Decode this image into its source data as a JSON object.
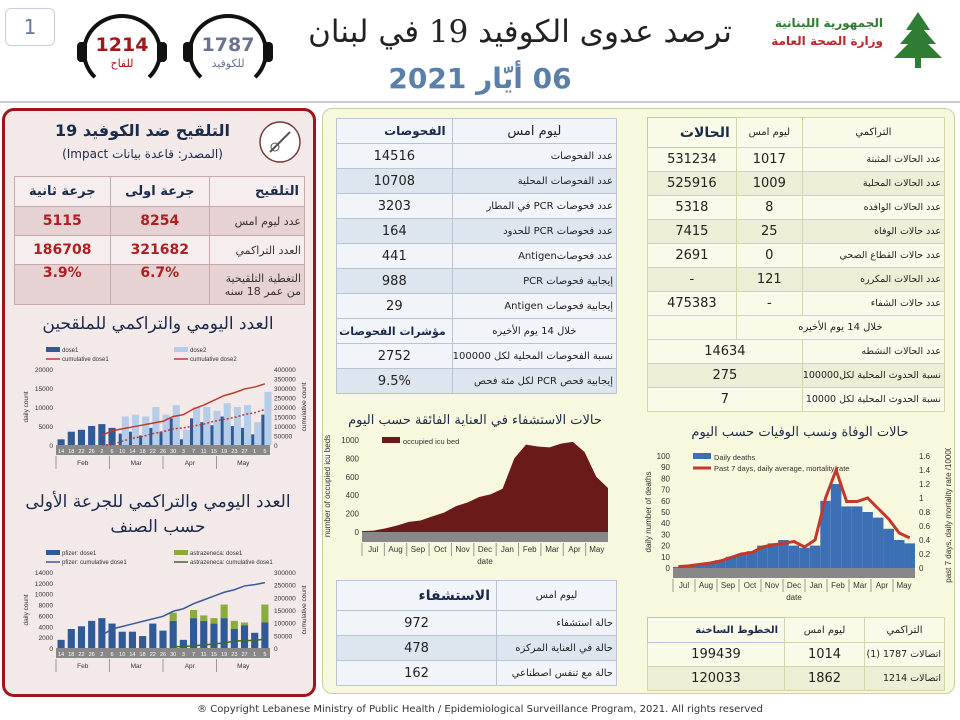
{
  "header": {
    "page_number": "1",
    "title": "ترصد عدوى الكوفيد 19 في لبنان",
    "date": "06 أيّار 2021",
    "logo_line1": "الجمهورية اللبنانية",
    "logo_line2": "وزارة الصحة العامة",
    "hotline_vaccine": {
      "number": "1214",
      "label": "للقاح",
      "color": "#a01818"
    },
    "hotline_covid": {
      "number": "1787",
      "label": "للكوفيد",
      "color": "#6a7290"
    }
  },
  "vaccination": {
    "title": "التلقيح ضد الكوفيد 19",
    "source": "(المصدر: قاعدة بيانات Impact)",
    "headers": [
      "التلقيح",
      "جرعة اولى",
      "جرعة ثانية"
    ],
    "rows": [
      [
        "عدد ليوم امس",
        "8254",
        "5115"
      ],
      [
        "العدد التراكمي",
        "321682",
        "186708"
      ],
      [
        "التغطية التلقيحية من عمر 18 سنه",
        "6.7%",
        "3.9%"
      ]
    ],
    "chart1_title": "العدد اليومي والتراكمي للملقحين",
    "chart2_title": "العدد اليومي والتراكمي للجرعة الأولى حسب الصنف"
  },
  "tests": {
    "headers": [
      "الفحوصات",
      "ليوم امس"
    ],
    "rows": [
      [
        "عدد الفحوصات",
        "14516"
      ],
      [
        "عدد الفحوصات المحلية",
        "10708"
      ],
      [
        "عدد فحوصات PCR في المطار",
        "3203"
      ],
      [
        "عدد فحوصات PCR للحدود",
        "164"
      ],
      [
        "عدد فحوصاتAntigen",
        "441"
      ],
      [
        "إيجابية فحوصات PCR",
        "988"
      ],
      [
        "إيجابية فحوصات Antigen",
        "29"
      ]
    ],
    "indicators_header": [
      "مؤشرات الفحوصات",
      "خلال 14 يوم الأخيره"
    ],
    "indicator_rows": [
      [
        "نسبة الفحوصات المحلية لكل 100000",
        "2752"
      ],
      [
        "إيجابية فحص PCR لكل مئة فحص",
        "9.5%"
      ]
    ]
  },
  "cases": {
    "headers": [
      "الحالات",
      "ليوم امس",
      "التراكمي"
    ],
    "rows": [
      [
        "عدد الحالات المثبتة",
        "1017",
        "531234"
      ],
      [
        "عدد الحالات المحلية",
        "1009",
        "525916"
      ],
      [
        "عدد الحالات الوافده",
        "8",
        "5318"
      ],
      [
        "عدد حالات الوفاة",
        "25",
        "7415"
      ],
      [
        "عدد حالات القطاع الصحي",
        "0",
        "2691"
      ],
      [
        "عدد الحالات المكرره",
        "121",
        "-"
      ],
      [
        "عدد حالات الشفاء",
        "-",
        "475383"
      ]
    ],
    "period_label": "خلال 14 يوم الأخيره",
    "period_rows": [
      [
        "عدد الحالات النشطه",
        "14634"
      ],
      [
        "نسبة الحدوث المحلية لكل100000",
        "275"
      ],
      [
        "نسبة الحدوث المحلية لكل 10000",
        "7"
      ]
    ]
  },
  "hospital": {
    "headers": [
      "الاستشفاء",
      "ليوم امس"
    ],
    "rows": [
      [
        "حالة استشفاء",
        "972"
      ],
      [
        "حالة في العناية المركزه",
        "478"
      ],
      [
        "حالة مع تنفس اصطناعي",
        "162"
      ]
    ]
  },
  "hotlines": {
    "headers": [
      "الخطوط الساخنة",
      "ليوم امس",
      "التراكمي"
    ],
    "rows": [
      [
        "اتصالات 1787 (1)",
        "1014",
        "199439"
      ],
      [
        "اتصالات 1214",
        "1862",
        "120033"
      ]
    ]
  },
  "footer": "® Copyright Lebanese Ministry of Public Health / Epidemiological Surveillance Program, 2021. All rights reserved",
  "chart_data": [
    {
      "id": "icu",
      "type": "area",
      "title": "حالات الاستشفاء في العناية الفائقة حسب اليوم",
      "xlabel": "date",
      "ylabel": "number of occupied icu beds",
      "ylim": [
        0,
        1000
      ],
      "yticks": [
        0,
        200,
        400,
        600,
        800,
        1000
      ],
      "months": [
        "Jul",
        "Aug",
        "Sep",
        "Oct",
        "Nov",
        "Dec",
        "Jan",
        "Feb",
        "Mar",
        "Apr",
        "May"
      ],
      "series": [
        {
          "name": "occupied icu bed",
          "color": "#6b1a1a",
          "values": [
            10,
            15,
            40,
            70,
            110,
            125,
            170,
            210,
            280,
            320,
            380,
            410,
            470,
            800,
            950,
            930,
            920,
            960,
            980,
            870,
            600,
            478
          ]
        }
      ]
    },
    {
      "id": "deaths",
      "type": "bar+line",
      "title": "حالات الوفاة ونسب الوفيات حسب اليوم",
      "xlabel": "date",
      "ylabel": "daily number of deaths",
      "y2label": "past 7 days, daily mortality rate /100000",
      "ylim": [
        0,
        100
      ],
      "y2lim": [
        0,
        1.6
      ],
      "yticks": [
        0,
        10,
        20,
        30,
        40,
        50,
        60,
        70,
        80,
        90,
        100
      ],
      "y2ticks": [
        0,
        0.2,
        0.4,
        0.6,
        0.8,
        1,
        1.2,
        1.4,
        1.6
      ],
      "months": [
        "Jul",
        "Aug",
        "Sep",
        "Oct",
        "Nov",
        "Dec",
        "Jan",
        "Feb",
        "Mar",
        "Apr",
        "May"
      ],
      "series": [
        {
          "name": "Daily deaths",
          "color": "#3d6fb5",
          "values": [
            1,
            2,
            3,
            5,
            7,
            10,
            12,
            15,
            20,
            22,
            25,
            20,
            18,
            20,
            60,
            75,
            55,
            55,
            50,
            45,
            35,
            25,
            22
          ]
        },
        {
          "name": "Past 7 days, daily average, mortality rate",
          "color": "#c0392b",
          "values": [
            0.02,
            0.03,
            0.05,
            0.07,
            0.1,
            0.15,
            0.2,
            0.22,
            0.3,
            0.33,
            0.35,
            0.38,
            0.3,
            0.4,
            1.0,
            1.4,
            0.95,
            0.95,
            1.0,
            0.85,
            0.7,
            0.5,
            0.43
          ]
        }
      ]
    },
    {
      "id": "vac1",
      "type": "bar+line",
      "ylabel": "daily count",
      "y2label": "cumulative count",
      "ylim": [
        0,
        20000
      ],
      "y2lim": [
        0,
        400000
      ],
      "yticks": [
        0,
        5000,
        10000,
        15000,
        20000
      ],
      "y2ticks": [
        0,
        50000,
        100000,
        150000,
        200000,
        250000,
        300000,
        350000,
        400000
      ],
      "categories": [
        "14",
        "18",
        "22",
        "26",
        "2",
        "6",
        "10",
        "14",
        "18",
        "22",
        "26",
        "30",
        "3",
        "7",
        "11",
        "15",
        "19",
        "23",
        "27",
        "1",
        "5"
      ],
      "months": [
        "Feb",
        "Mar",
        "Apr",
        "May"
      ],
      "series": [
        {
          "name": "dose1",
          "color": "#2f5a96",
          "values": [
            1500,
            3500,
            4000,
            5000,
            5500,
            4500,
            3000,
            3500,
            2500,
            4500,
            3500,
            7000,
            1500,
            7000,
            6000,
            5200,
            7500,
            5000,
            4500,
            2800,
            8000
          ]
        },
        {
          "name": "dose2",
          "color": "#b5cde8",
          "values": [
            0,
            0,
            0,
            0,
            0,
            0,
            7500,
            8000,
            7500,
            10000,
            8000,
            10500,
            4000,
            10000,
            10000,
            9000,
            11000,
            10000,
            10500,
            6000,
            14000
          ]
        },
        {
          "name": "cumulative dose1",
          "color": "#c0392b",
          "values": [
            null,
            null,
            null,
            null,
            50000,
            75000,
            85000,
            95000,
            105000,
            115000,
            125000,
            150000,
            160000,
            190000,
            210000,
            235000,
            260000,
            275000,
            295000,
            305000,
            322000
          ]
        },
        {
          "name": "cumulative dose2",
          "color": "#c0392b",
          "values": [
            null,
            null,
            null,
            null,
            0,
            2000,
            20000,
            35000,
            45000,
            60000,
            70000,
            85000,
            90000,
            100000,
            110000,
            125000,
            135000,
            145000,
            160000,
            170000,
            187000
          ]
        }
      ]
    },
    {
      "id": "vac2",
      "type": "bar+line",
      "ylabel": "daily count",
      "y2label": "cumulative count",
      "ylim": [
        0,
        14000
      ],
      "y2lim": [
        0,
        300000
      ],
      "yticks": [
        0,
        2000,
        4000,
        6000,
        8000,
        10000,
        12000,
        14000
      ],
      "y2ticks": [
        0,
        50000,
        100000,
        150000,
        200000,
        250000,
        300000
      ],
      "categories": [
        "14",
        "18",
        "22",
        "26",
        "2",
        "6",
        "10",
        "14",
        "18",
        "22",
        "26",
        "30",
        "3",
        "7",
        "11",
        "15",
        "19",
        "23",
        "27",
        "1",
        "5"
      ],
      "months": [
        "Feb",
        "Mar",
        "Apr",
        "May"
      ],
      "series": [
        {
          "name": "pfizer: dose1",
          "color": "#2f5a96",
          "values": [
            1500,
            3500,
            4000,
            5000,
            5500,
            4500,
            3000,
            3000,
            2200,
            4500,
            3200,
            5000,
            1500,
            5500,
            5000,
            4500,
            5500,
            3500,
            4200,
            2800,
            4700
          ]
        },
        {
          "name": "astrazeneca: dose1",
          "color": "#8bab3c",
          "values": [
            0,
            0,
            0,
            0,
            0,
            0,
            0,
            0,
            0,
            0,
            0,
            1500,
            0,
            1500,
            1000,
            1000,
            2500,
            1500,
            500,
            0,
            3300
          ]
        },
        {
          "name": "pfizer: cumulative dose1",
          "color": "#3a5a9a",
          "values": [
            null,
            null,
            null,
            null,
            50000,
            75000,
            85000,
            95000,
            105000,
            115000,
            125000,
            145000,
            155000,
            175000,
            190000,
            205000,
            220000,
            230000,
            245000,
            250000,
            258000
          ]
        },
        {
          "name": "astrazeneca: cumulative dose1",
          "color": "#3c6a2a",
          "values": [
            null,
            null,
            null,
            null,
            null,
            null,
            null,
            null,
            null,
            null,
            null,
            5000,
            6000,
            9000,
            12000,
            16000,
            20000,
            27000,
            29000,
            30000,
            35000
          ]
        }
      ]
    }
  ]
}
